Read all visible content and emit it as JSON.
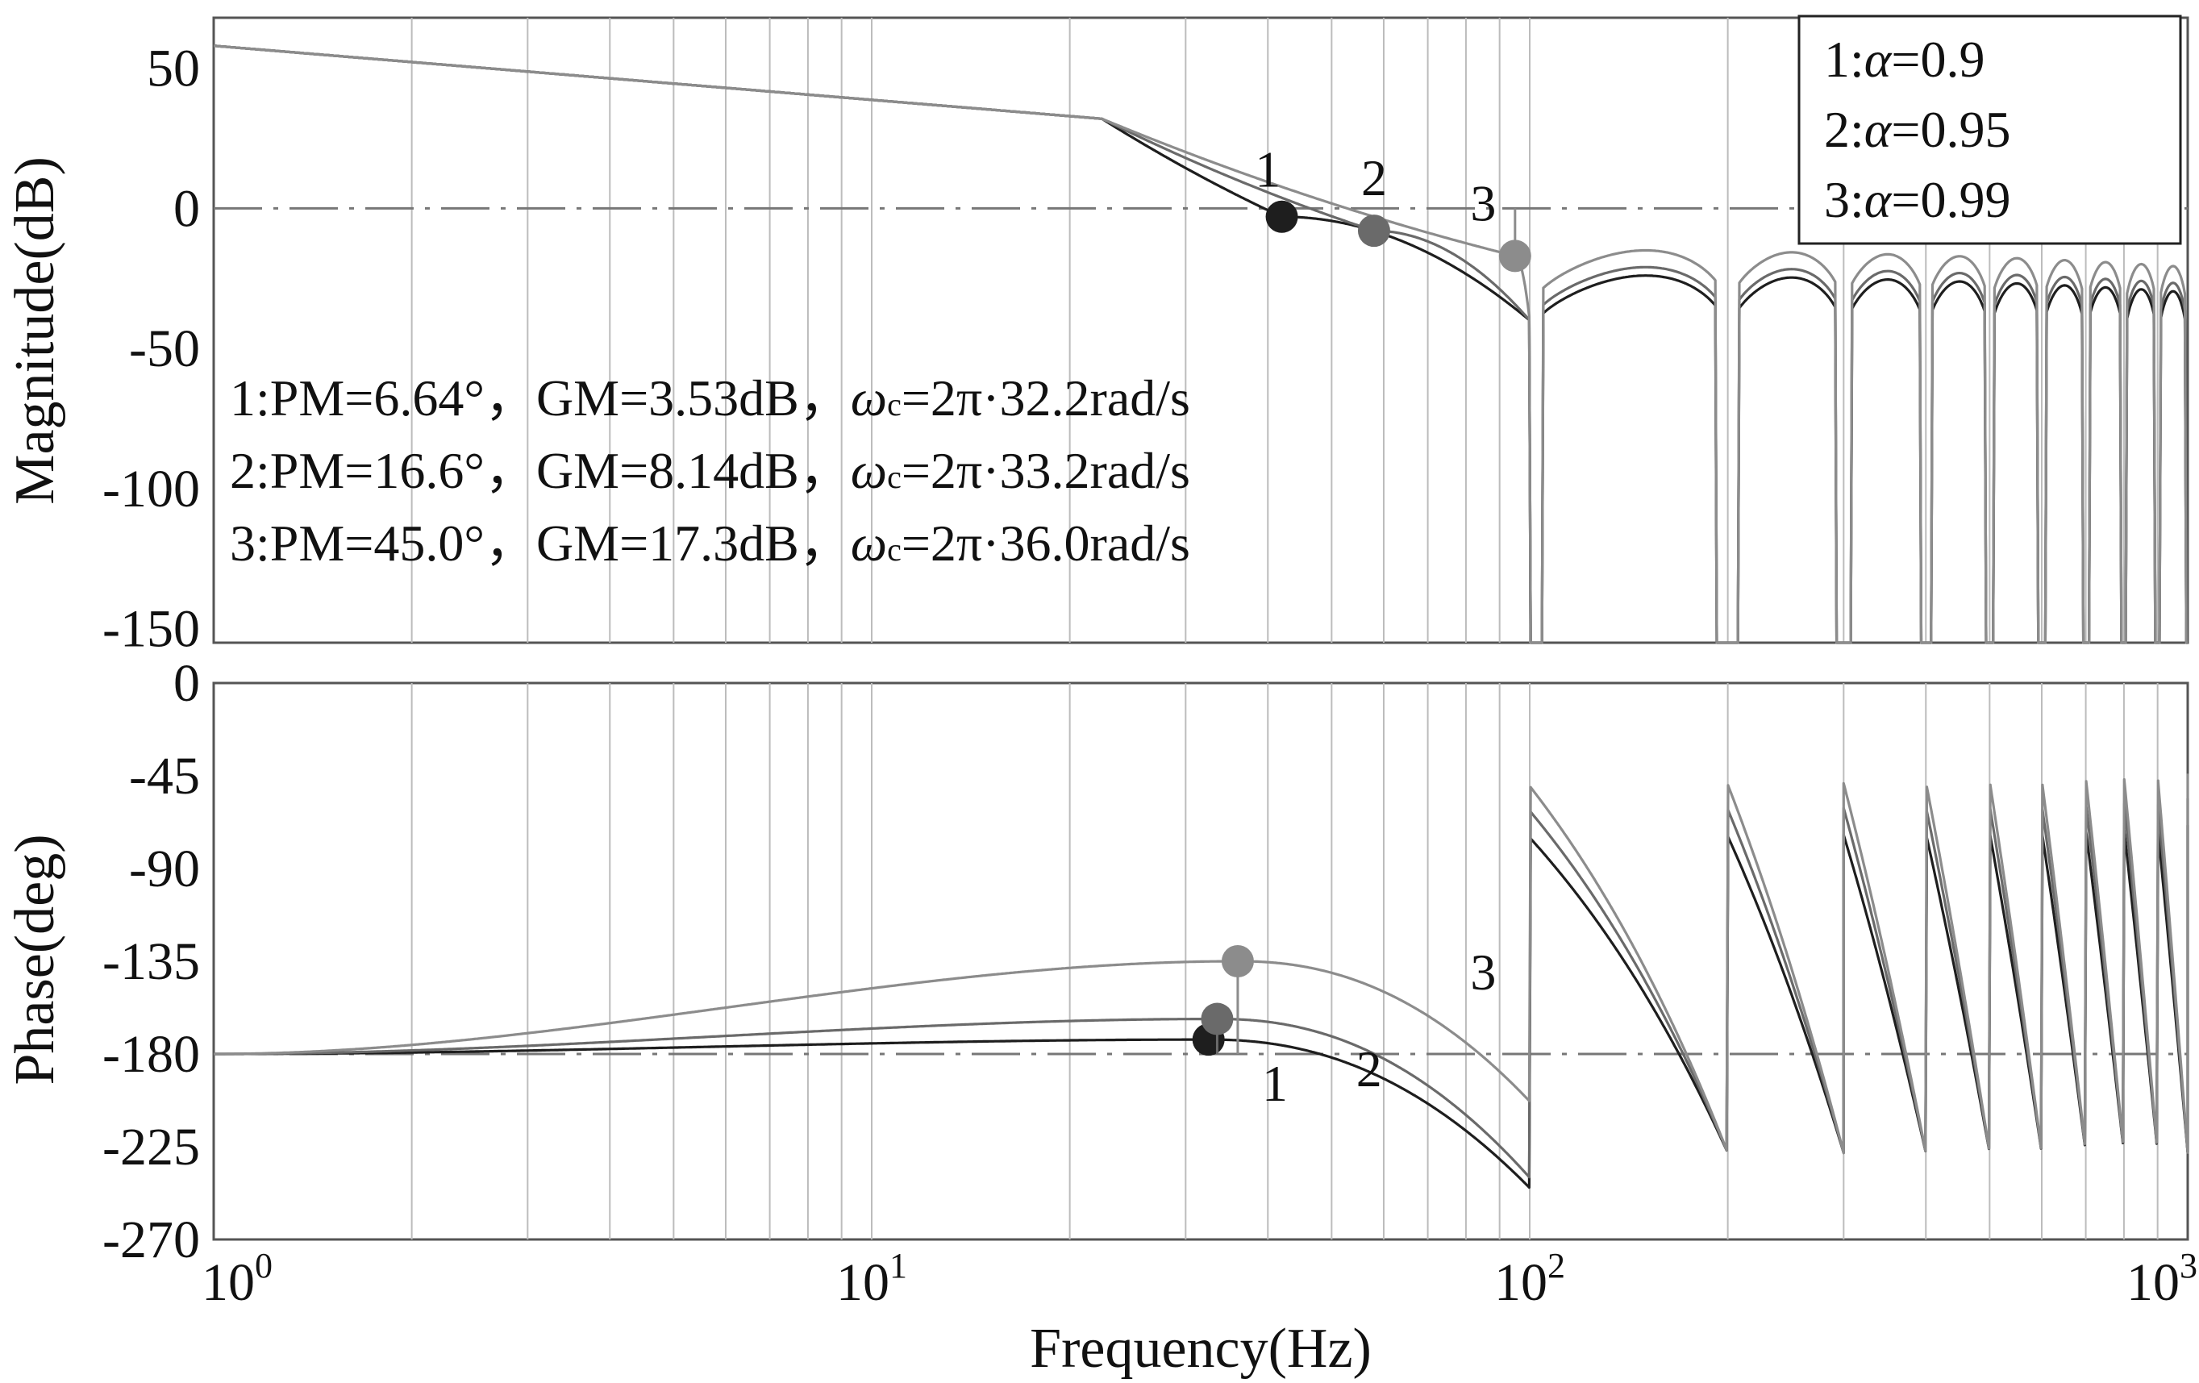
{
  "chart_data": {
    "type": "line",
    "kind": "bode",
    "xscale": "log",
    "xlim": [
      1,
      1000
    ],
    "xlabel": "Frequency(Hz)",
    "x_ticks": [
      {
        "value": 1,
        "base": "10",
        "exp": "0"
      },
      {
        "value": 10,
        "base": "10",
        "exp": "1"
      },
      {
        "value": 100,
        "base": "10",
        "exp": "2"
      },
      {
        "value": 1000,
        "base": "10",
        "exp": "3"
      }
    ],
    "magnitude": {
      "ylabel": "Magnitude(dB)",
      "ylim": [
        -155,
        68
      ],
      "yticks": [
        50,
        0,
        -50,
        -100,
        -150
      ],
      "yticklabels": [
        "50",
        "0",
        "-50",
        "-100",
        "-150"
      ],
      "reference_line": 0
    },
    "phase": {
      "ylabel": "Phase(deg)",
      "ylim": [
        -270,
        0
      ],
      "yticks": [
        0,
        -45,
        -90,
        -135,
        -180,
        -225,
        -270
      ],
      "yticklabels": [
        "0",
        "-45",
        "-90",
        "-135",
        "-180",
        "-225",
        "-270"
      ],
      "reference_line": -180
    },
    "series": [
      {
        "id": "1",
        "name": "α=0.9",
        "alpha": 0.9,
        "color": "#1e1e1e",
        "plateau_dB": -24,
        "phase_peak_deg": -173,
        "crossover_hz": 32.2,
        "pm_deg": 6.64,
        "gm_db": 3.53,
        "mag_marker": {
          "f": 42,
          "db": -3
        },
        "phase_marker": {
          "f": 32.5,
          "deg": -173
        }
      },
      {
        "id": "2",
        "name": "α=0.95",
        "alpha": 0.95,
        "color": "#6a6a6a",
        "plateau_dB": -21,
        "phase_peak_deg": -163,
        "crossover_hz": 33.2,
        "pm_deg": 16.6,
        "gm_db": 8.14,
        "mag_marker": {
          "f": 58,
          "db": -8
        },
        "phase_marker": {
          "f": 33.5,
          "deg": -163
        }
      },
      {
        "id": "3",
        "name": "α=0.99",
        "alpha": 0.99,
        "color": "#8c8c8c",
        "plateau_dB": -15,
        "phase_peak_deg": -135,
        "crossover_hz": 36.0,
        "pm_deg": 45.0,
        "gm_db": 17.3,
        "mag_marker": {
          "f": 95,
          "db": -17
        },
        "phase_marker": {
          "f": 36,
          "deg": -135
        }
      }
    ],
    "legend": {
      "position": "top-right",
      "entries": [
        {
          "prefix": "1:",
          "symbol": "α",
          "suffix": "=0.9"
        },
        {
          "prefix": "2:",
          "symbol": "α",
          "suffix": "=0.95"
        },
        {
          "prefix": "3:",
          "symbol": "α",
          "suffix": "=0.99"
        }
      ]
    },
    "annotations": [
      {
        "lead": "1:PM=6.64°，GM=3.53dB，",
        "omega": "ω",
        "sub": "c",
        "tail": "=2π·32.2rad/s"
      },
      {
        "lead": "2:PM=16.6°，GM=8.14dB，",
        "omega": "ω",
        "sub": "c",
        "tail": "=2π·33.2rad/s"
      },
      {
        "lead": "3:PM=45.0°，GM=17.3dB，",
        "omega": "ω",
        "sub": "c",
        "tail": "=2π·36.0rad/s"
      }
    ],
    "curve_labels": {
      "magnitude": [
        {
          "text": "1",
          "f": 40,
          "db": 14
        },
        {
          "text": "2",
          "f": 58,
          "db": 11
        },
        {
          "text": "3",
          "f": 85,
          "db": 2
        }
      ],
      "phase": [
        {
          "text": "1",
          "f": 41,
          "deg": -194
        },
        {
          "text": "2",
          "f": 57,
          "deg": -187
        },
        {
          "text": "3",
          "f": 85,
          "deg": -140
        }
      ]
    }
  }
}
